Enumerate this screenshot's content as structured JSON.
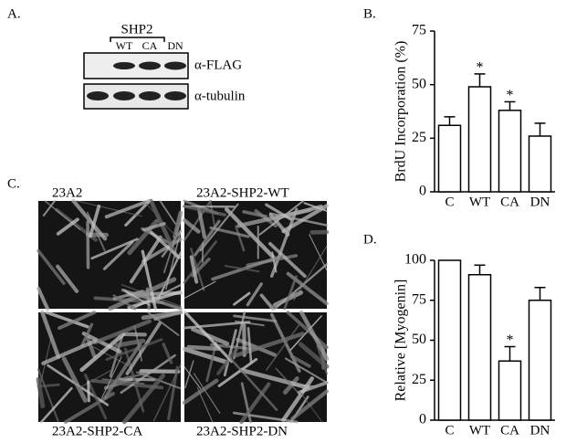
{
  "panel_labels": [
    "A.",
    "B.",
    "C.",
    "D."
  ],
  "blot": {
    "group_label": "SHP2",
    "lanes": [
      "WT",
      "CA",
      "DN"
    ],
    "rows": [
      "α-FLAG",
      "α-tubulin"
    ]
  },
  "micrographs": [
    "23A2",
    "23A2-SHP2-WT",
    "23A2-SHP2-CA",
    "23A2-SHP2-DN"
  ],
  "chart_data": [
    {
      "type": "bar",
      "y_label": "BrdU Incorporation (%)",
      "categories": [
        "C",
        "WT",
        "CA",
        "DN"
      ],
      "values": [
        31,
        49,
        38,
        26
      ],
      "errors": [
        4,
        6,
        4,
        6
      ],
      "significance": [
        null,
        "*",
        "*",
        null
      ],
      "color": "#ffffff",
      "ylim": [
        0,
        75
      ],
      "yticks": [
        0,
        25,
        50,
        75
      ]
    },
    {
      "type": "bar",
      "y_label": "Relative [Myogenin]",
      "categories": [
        "C",
        "WT",
        "CA",
        "DN"
      ],
      "values": [
        100,
        91,
        37,
        75
      ],
      "errors": [
        null,
        6,
        9,
        8
      ],
      "significance": [
        null,
        null,
        "*",
        null
      ],
      "color": "#ffffff",
      "ylim": [
        0,
        100
      ],
      "yticks": [
        0,
        25,
        50,
        75,
        100
      ]
    }
  ]
}
